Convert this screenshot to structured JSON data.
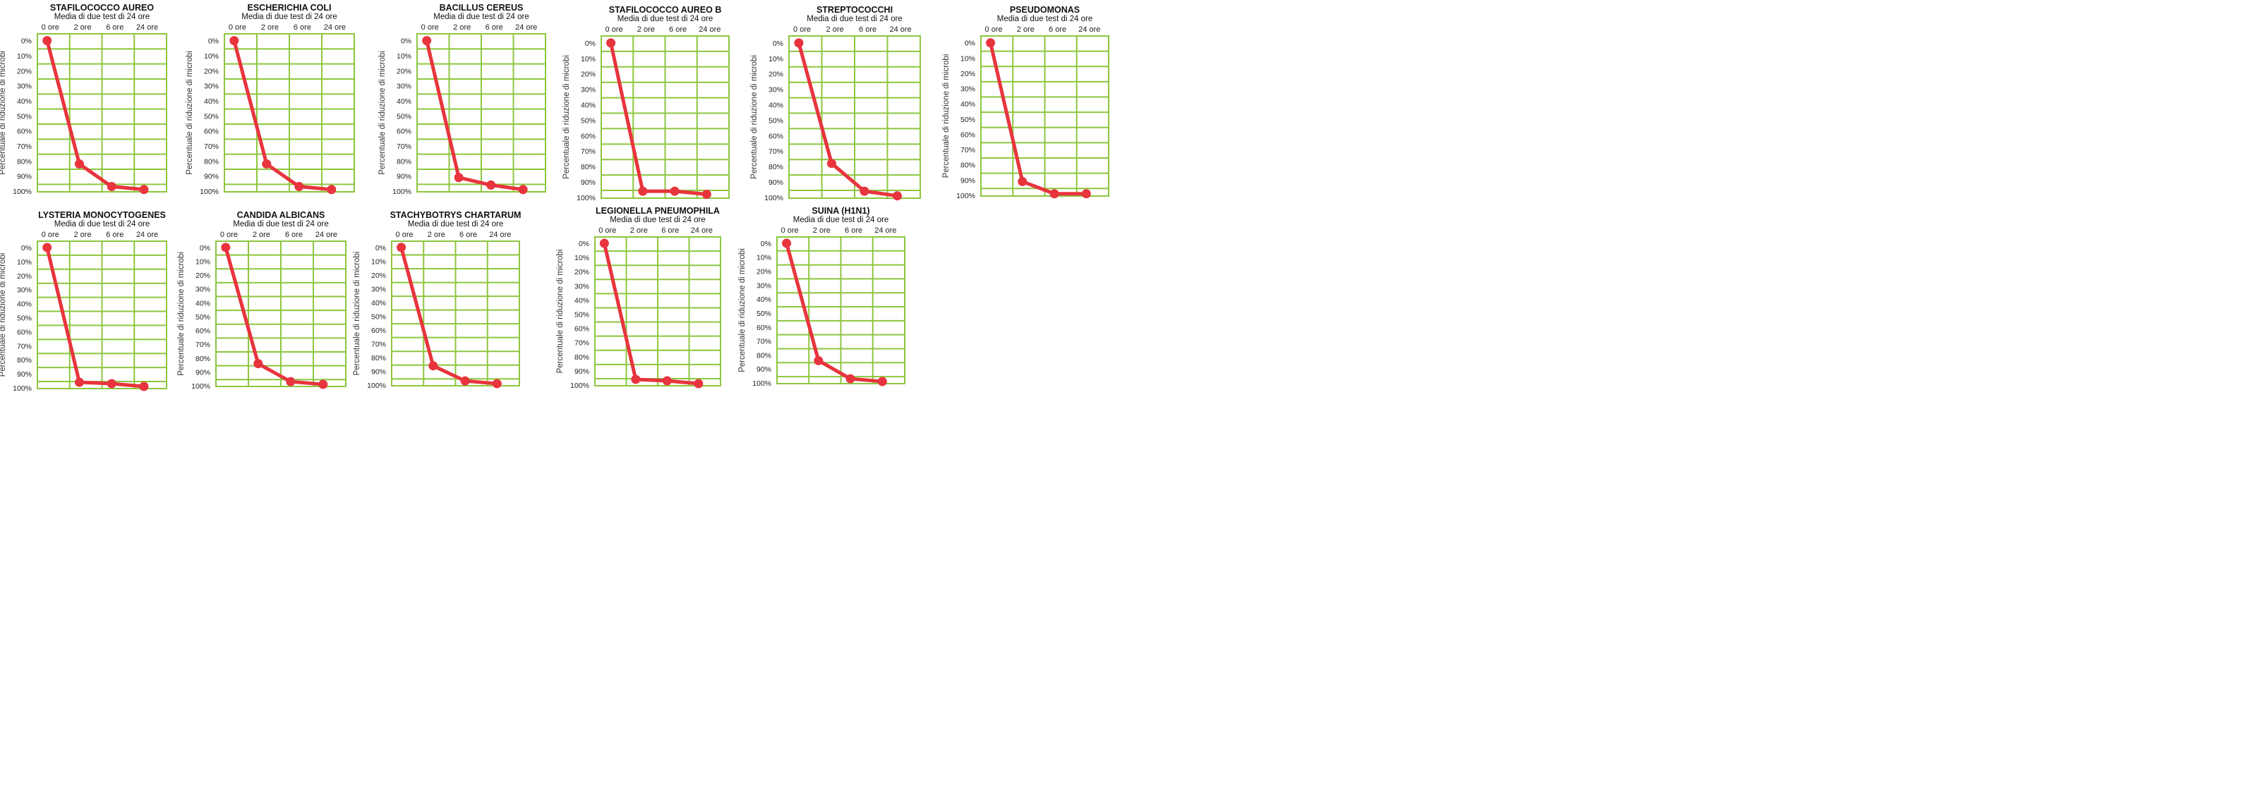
{
  "colors": {
    "grid": "#8dc63f",
    "line": "#e8343d",
    "point": "#e8343d"
  },
  "chart_data": [
    {
      "type": "line",
      "title": "STAFILOCOCCO AUREO",
      "subtitle": "Media di due test di 24 ore",
      "categories": [
        "0 ore",
        "2 ore",
        "6 ore",
        "24 ore"
      ],
      "yticks": [
        "0%",
        "10%",
        "20%",
        "30%",
        "40%",
        "50%",
        "60%",
        "70%",
        "80%",
        "90%",
        "100%"
      ],
      "ylabel": "Percentuale di riduzione di microbi",
      "ylim": [
        0,
        100
      ],
      "yaxis_inverted": true,
      "grid": true,
      "values": [
        0,
        82,
        97,
        99
      ]
    },
    {
      "type": "line",
      "title": "ESCHERICHIA COLI",
      "subtitle": "Media di due test di 24 ore",
      "categories": [
        "0 ore",
        "2 ore",
        "6 ore",
        "24 ore"
      ],
      "yticks": [
        "0%",
        "10%",
        "20%",
        "30%",
        "40%",
        "50%",
        "60%",
        "70%",
        "80%",
        "90%",
        "100%"
      ],
      "ylabel": "Percentuale di riduzione di microbi",
      "ylim": [
        0,
        100
      ],
      "yaxis_inverted": true,
      "grid": true,
      "values": [
        0,
        82,
        97,
        99
      ]
    },
    {
      "type": "line",
      "title": "BACILLUS CEREUS",
      "subtitle": "Media di due test di 24 ore",
      "categories": [
        "0 ore",
        "2 ore",
        "6 ore",
        "24 ore"
      ],
      "yticks": [
        "0%",
        "10%",
        "20%",
        "30%",
        "40%",
        "50%",
        "60%",
        "70%",
        "80%",
        "90%",
        "100%"
      ],
      "ylabel": "Percentuale di riduzione di microbi",
      "ylim": [
        0,
        100
      ],
      "yaxis_inverted": true,
      "grid": true,
      "values": [
        0,
        91,
        96,
        99
      ]
    },
    {
      "type": "line",
      "title": "STAFILOCOCCO AUREO B",
      "subtitle": "Media di due test di 24 ore",
      "categories": [
        "0 ore",
        "2 ore",
        "6 ore",
        "24 ore"
      ],
      "yticks": [
        "0%",
        "10%",
        "20%",
        "30%",
        "40%",
        "50%",
        "60%",
        "70%",
        "80%",
        "90%",
        "100%"
      ],
      "ylabel": "Percentuale di riduzione di microbi",
      "ylim": [
        0,
        100
      ],
      "yaxis_inverted": true,
      "grid": true,
      "values": [
        0,
        96,
        96,
        98
      ]
    },
    {
      "type": "line",
      "title": "STREPTOCOCCHI",
      "subtitle": "Media di due test di 24 ore",
      "categories": [
        "0 ore",
        "2 ore",
        "6 ore",
        "24 ore"
      ],
      "yticks": [
        "0%",
        "10%",
        "20%",
        "30%",
        "40%",
        "50%",
        "60%",
        "70%",
        "80%",
        "90%",
        "100%"
      ],
      "ylabel": "Percentuale di riduzione di microbi",
      "ylim": [
        0,
        100
      ],
      "yaxis_inverted": true,
      "grid": true,
      "values": [
        0,
        78,
        96,
        99
      ]
    },
    {
      "type": "line",
      "title": "PSEUDOMONAS",
      "subtitle": "Media di due test di 24 ore",
      "categories": [
        "0 ore",
        "2 ore",
        "6 ore",
        "24 ore"
      ],
      "yticks": [
        "0%",
        "10%",
        "20%",
        "30%",
        "40%",
        "50%",
        "60%",
        "70%",
        "80%",
        "90%",
        "100%"
      ],
      "ylabel": "Percentuale di riduzione di microbi",
      "ylim": [
        0,
        100
      ],
      "yaxis_inverted": true,
      "grid": true,
      "values": [
        0,
        91,
        99,
        99
      ]
    },
    {
      "type": "line",
      "title": "LYSTERIA MONOCYTOGENES",
      "subtitle": "Media di due test di 24 ore",
      "categories": [
        "0 ore",
        "2 ore",
        "6 ore",
        "24 ore"
      ],
      "yticks": [
        "0%",
        "10%",
        "20%",
        "30%",
        "40%",
        "50%",
        "60%",
        "70%",
        "80%",
        "90%",
        "100%"
      ],
      "ylabel": "Percentuale di riduzione di microbi",
      "ylim": [
        0,
        100
      ],
      "yaxis_inverted": true,
      "grid": true,
      "values": [
        0,
        96,
        97,
        99
      ]
    },
    {
      "type": "line",
      "title": "CANDIDA ALBICANS",
      "subtitle": "Media di due test di 24 ore",
      "categories": [
        "0 ore",
        "2 ore",
        "6 ore",
        "24 ore"
      ],
      "yticks": [
        "0%",
        "10%",
        "20%",
        "30%",
        "40%",
        "50%",
        "60%",
        "70%",
        "80%",
        "90%",
        "100%"
      ],
      "ylabel": "Percentuale di riduzione di microbi",
      "ylim": [
        0,
        100
      ],
      "yaxis_inverted": true,
      "grid": true,
      "values": [
        0,
        84,
        97,
        99
      ]
    },
    {
      "type": "line",
      "title": "STACHYBOTRYS CHARTARUM",
      "subtitle": "Media di due test di 24 ore",
      "categories": [
        "0 ore",
        "2 ore",
        "6 ore",
        "24 ore"
      ],
      "yticks": [
        "0%",
        "10%",
        "20%",
        "30%",
        "40%",
        "50%",
        "60%",
        "70%",
        "80%",
        "90%",
        "100%"
      ],
      "ylabel": "Percentuale di riduzione di microbi",
      "ylim": [
        0,
        100
      ],
      "yaxis_inverted": true,
      "grid": true,
      "values": [
        0,
        86,
        97,
        99
      ]
    },
    {
      "type": "line",
      "title": "LEGIONELLA PNEUMOPHILA",
      "subtitle": "Media di due test di 24 ore",
      "categories": [
        "0 ore",
        "2 ore",
        "6 ore",
        "24 ore"
      ],
      "yticks": [
        "0%",
        "10%",
        "20%",
        "30%",
        "40%",
        "50%",
        "60%",
        "70%",
        "80%",
        "90%",
        "100%"
      ],
      "ylabel": "Percentuale di riduzione di microbi",
      "ylim": [
        0,
        100
      ],
      "yaxis_inverted": true,
      "grid": true,
      "values": [
        0,
        96,
        97,
        99
      ]
    },
    {
      "type": "line",
      "title": "SUINA (H1N1)",
      "subtitle": "Media di due test di 24 ore",
      "categories": [
        "0 ore",
        "2 ore",
        "6 ore",
        "24 ore"
      ],
      "yticks": [
        "0%",
        "10%",
        "20%",
        "30%",
        "40%",
        "50%",
        "60%",
        "70%",
        "80%",
        "90%",
        "100%"
      ],
      "ylabel": "Percentuale di riduzione di microbi",
      "ylim": [
        0,
        100
      ],
      "yaxis_inverted": true,
      "grid": true,
      "values": [
        0,
        84,
        97,
        99
      ]
    }
  ]
}
